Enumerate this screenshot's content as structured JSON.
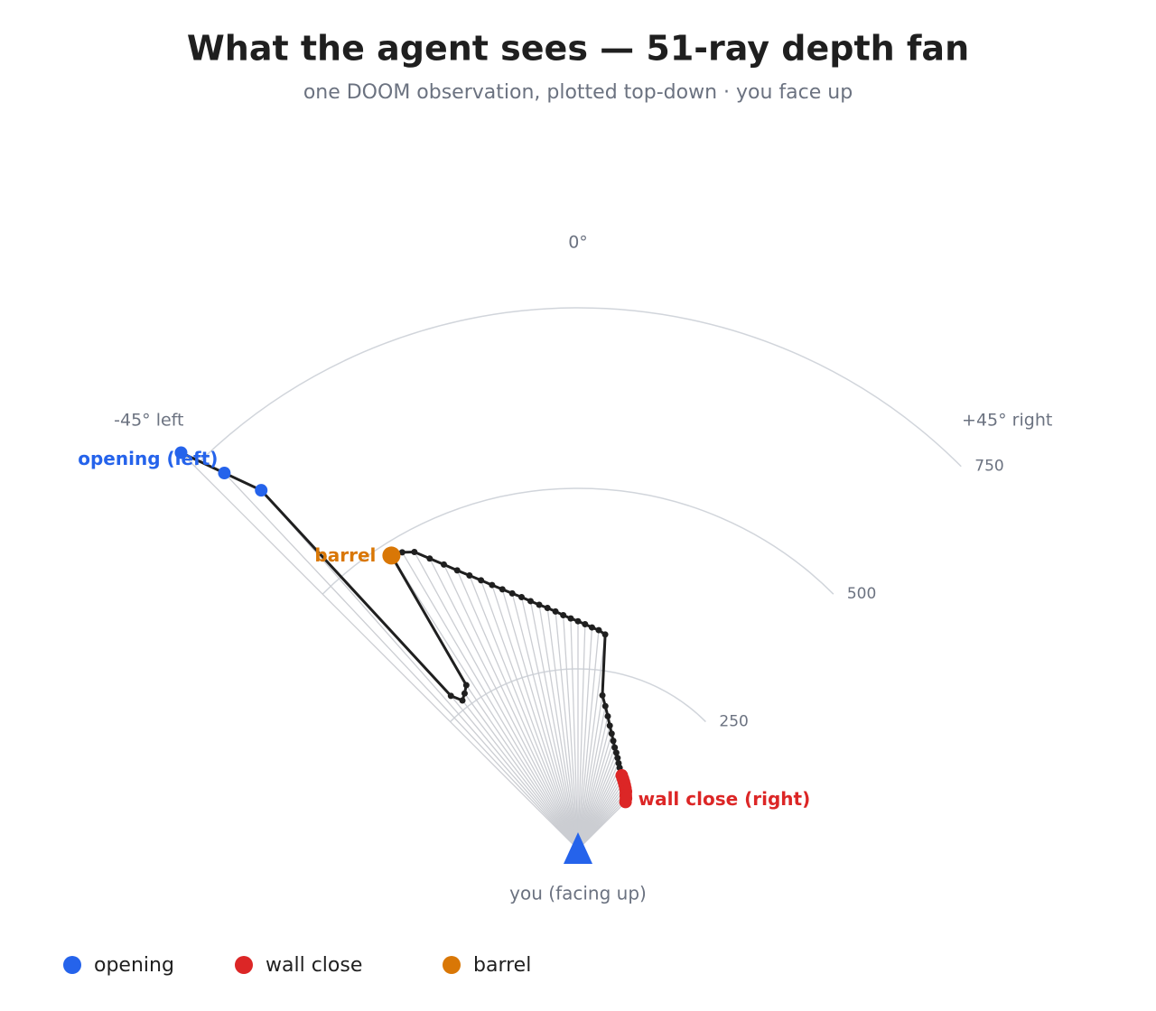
{
  "chart_data": {
    "type": "polar-fan",
    "title": "What the agent sees — 51-ray depth fan",
    "subtitle": "one DOOM observation, plotted top-down · you face up",
    "origin_label": "you (facing up)",
    "xlim": [
      -45,
      45
    ],
    "xticks": [
      {
        "value": -45,
        "label": "-45° left"
      },
      {
        "value": 0,
        "label": "0°"
      },
      {
        "value": 45,
        "label": "+45° right"
      }
    ],
    "rlim": [
      0,
      800
    ],
    "rticks": [
      250,
      500,
      750
    ],
    "x": [
      -45,
      -43.2,
      -41.4,
      -39.6,
      -37.8,
      -36,
      -34.2,
      -32.4,
      -30.6,
      -28.8,
      -27,
      -25.2,
      -23.4,
      -21.6,
      -19.8,
      -18,
      -16.2,
      -14.4,
      -12.6,
      -10.8,
      -9,
      -7.2,
      -5.4,
      -3.6,
      -1.8,
      0,
      1.8,
      3.6,
      5.4,
      7.2,
      9,
      10.8,
      12.6,
      14.4,
      16.2,
      18,
      19.8,
      21.6,
      23.4,
      25.2,
      27,
      28.8,
      30.6,
      32.4,
      34.2,
      36,
      37.8,
      39.6,
      41.4,
      43.2,
      45
    ],
    "values": [
      777,
      715,
      663,
      276,
      261,
      267,
      275,
      482,
      478,
      470,
      452,
      436,
      421,
      408,
      396,
      385,
      375,
      366,
      358,
      350,
      343,
      337,
      331,
      325,
      320,
      316,
      312,
      308,
      305,
      300,
      216,
      202,
      189,
      177,
      167,
      158,
      150,
      144,
      138,
      132,
      127,
      122,
      119,
      116,
      113,
      110,
      107,
      104,
      100,
      97,
      93
    ],
    "color": "#1f1f1f",
    "ray_color": "#cbcdd2",
    "series": [
      {
        "name": "opening",
        "label": "opening (left)",
        "color": "#2563eb",
        "values": [
          777,
          715,
          663,
          null,
          null,
          null,
          null,
          null,
          null,
          null,
          null,
          null,
          null,
          null,
          null,
          null,
          null,
          null,
          null,
          null,
          null,
          null,
          null,
          null,
          null,
          null,
          null,
          null,
          null,
          null,
          null,
          null,
          null,
          null,
          null,
          null,
          null,
          null,
          null,
          null,
          null,
          null,
          null,
          null,
          null,
          null,
          null,
          null,
          null,
          null,
          null
        ]
      },
      {
        "name": "wall close",
        "label": "wall close (right)",
        "color": "#dc2626",
        "values": [
          null,
          null,
          null,
          null,
          null,
          null,
          null,
          null,
          null,
          null,
          null,
          null,
          null,
          null,
          null,
          null,
          null,
          null,
          null,
          null,
          null,
          null,
          null,
          null,
          null,
          null,
          null,
          null,
          null,
          null,
          null,
          null,
          null,
          null,
          null,
          null,
          null,
          null,
          null,
          null,
          null,
          null,
          119,
          116,
          113,
          110,
          107,
          104,
          100,
          97,
          93
        ]
      },
      {
        "name": "barrel",
        "label": "barrel",
        "color": "#d97706",
        "values": [
          null,
          null,
          null,
          null,
          null,
          null,
          null,
          482,
          null,
          null,
          null,
          null,
          null,
          null,
          null,
          null,
          null,
          null,
          null,
          null,
          null,
          null,
          null,
          null,
          null,
          null,
          null,
          null,
          null,
          null,
          null,
          null,
          null,
          null,
          null,
          null,
          null,
          null,
          null,
          null,
          null,
          null,
          null,
          null,
          null,
          null,
          null,
          null,
          null,
          null,
          null
        ]
      }
    ]
  }
}
